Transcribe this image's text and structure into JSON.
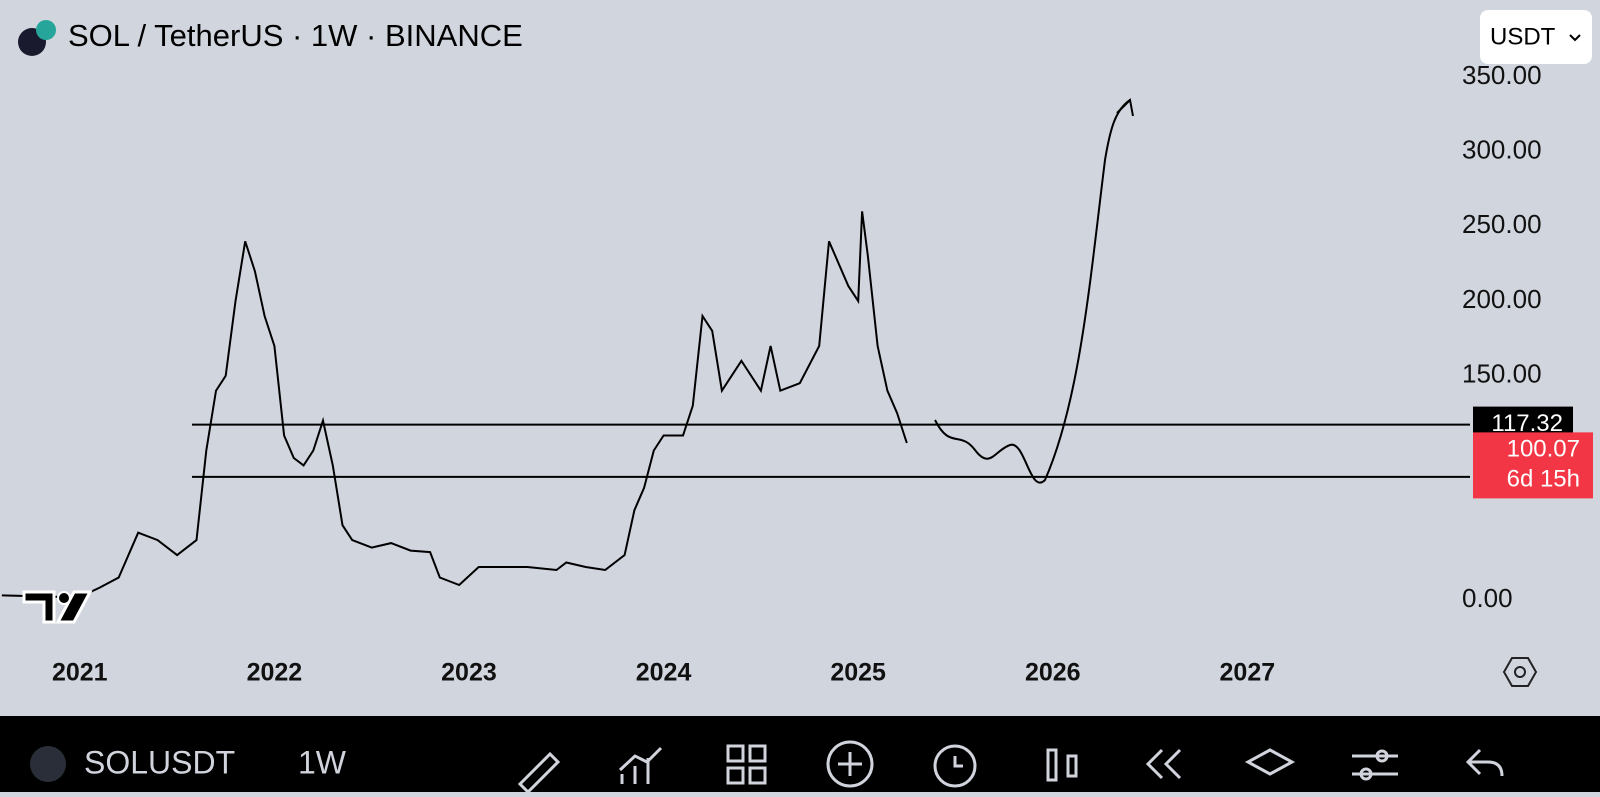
{
  "header": {
    "title": "SOL / TetherUS · 1W · BINANCE",
    "currency": "USDT"
  },
  "chart_data": {
    "type": "line",
    "color": "#000000",
    "x": [
      2020.6,
      2020.9,
      2021.0,
      2021.1,
      2021.2,
      2021.3,
      2021.4,
      2021.5,
      2021.55,
      2021.6,
      2021.65,
      2021.7,
      2021.75,
      2021.8,
      2021.85,
      2021.9,
      2021.95,
      2022.0,
      2022.05,
      2022.1,
      2022.15,
      2022.2,
      2022.25,
      2022.3,
      2022.35,
      2022.4,
      2022.5,
      2022.6,
      2022.7,
      2022.8,
      2022.85,
      2022.95,
      2023.05,
      2023.15,
      2023.3,
      2023.45,
      2023.5,
      2023.6,
      2023.7,
      2023.8,
      2023.85,
      2023.9,
      2023.95,
      2024.0,
      2024.1,
      2024.15,
      2024.2,
      2024.25,
      2024.3,
      2024.4,
      2024.5,
      2024.55,
      2024.6,
      2024.7,
      2024.8,
      2024.85,
      2024.95,
      2025.0,
      2025.02,
      2025.05,
      2025.1,
      2025.15,
      2025.2,
      2025.25
    ],
    "values": [
      3,
      2,
      2,
      8,
      15,
      45,
      40,
      30,
      35,
      40,
      100,
      140,
      150,
      200,
      240,
      220,
      190,
      170,
      110,
      95,
      90,
      100,
      120,
      90,
      50,
      40,
      35,
      38,
      33,
      32,
      15,
      10,
      22,
      22,
      22,
      20,
      25,
      22,
      20,
      30,
      60,
      75,
      100,
      110,
      110,
      130,
      190,
      180,
      140,
      160,
      140,
      170,
      140,
      145,
      170,
      240,
      210,
      200,
      260,
      230,
      170,
      140,
      125,
      105
    ],
    "xlim": [
      2020.59,
      2027.99
    ],
    "xticks": [
      2021,
      2022,
      2023,
      2024,
      2025,
      2026,
      2027
    ],
    "ylim": [
      -67,
      401.5
    ],
    "yticks": [
      {
        "value": 0,
        "label": "0.00"
      },
      {
        "value": 150,
        "label": "150.00"
      },
      {
        "value": 200,
        "label": "200.00"
      },
      {
        "value": 250,
        "label": "250.00"
      },
      {
        "value": 300,
        "label": "300.00"
      },
      {
        "value": 350,
        "label": "350.00"
      }
    ],
    "grid": false,
    "price_lines": [
      117.32,
      82.34
    ],
    "last_price": {
      "value": 100.07,
      "countdown": "6d 15h"
    }
  },
  "toolbar": {
    "symbol": "SOLUSDT",
    "interval": "1W"
  }
}
